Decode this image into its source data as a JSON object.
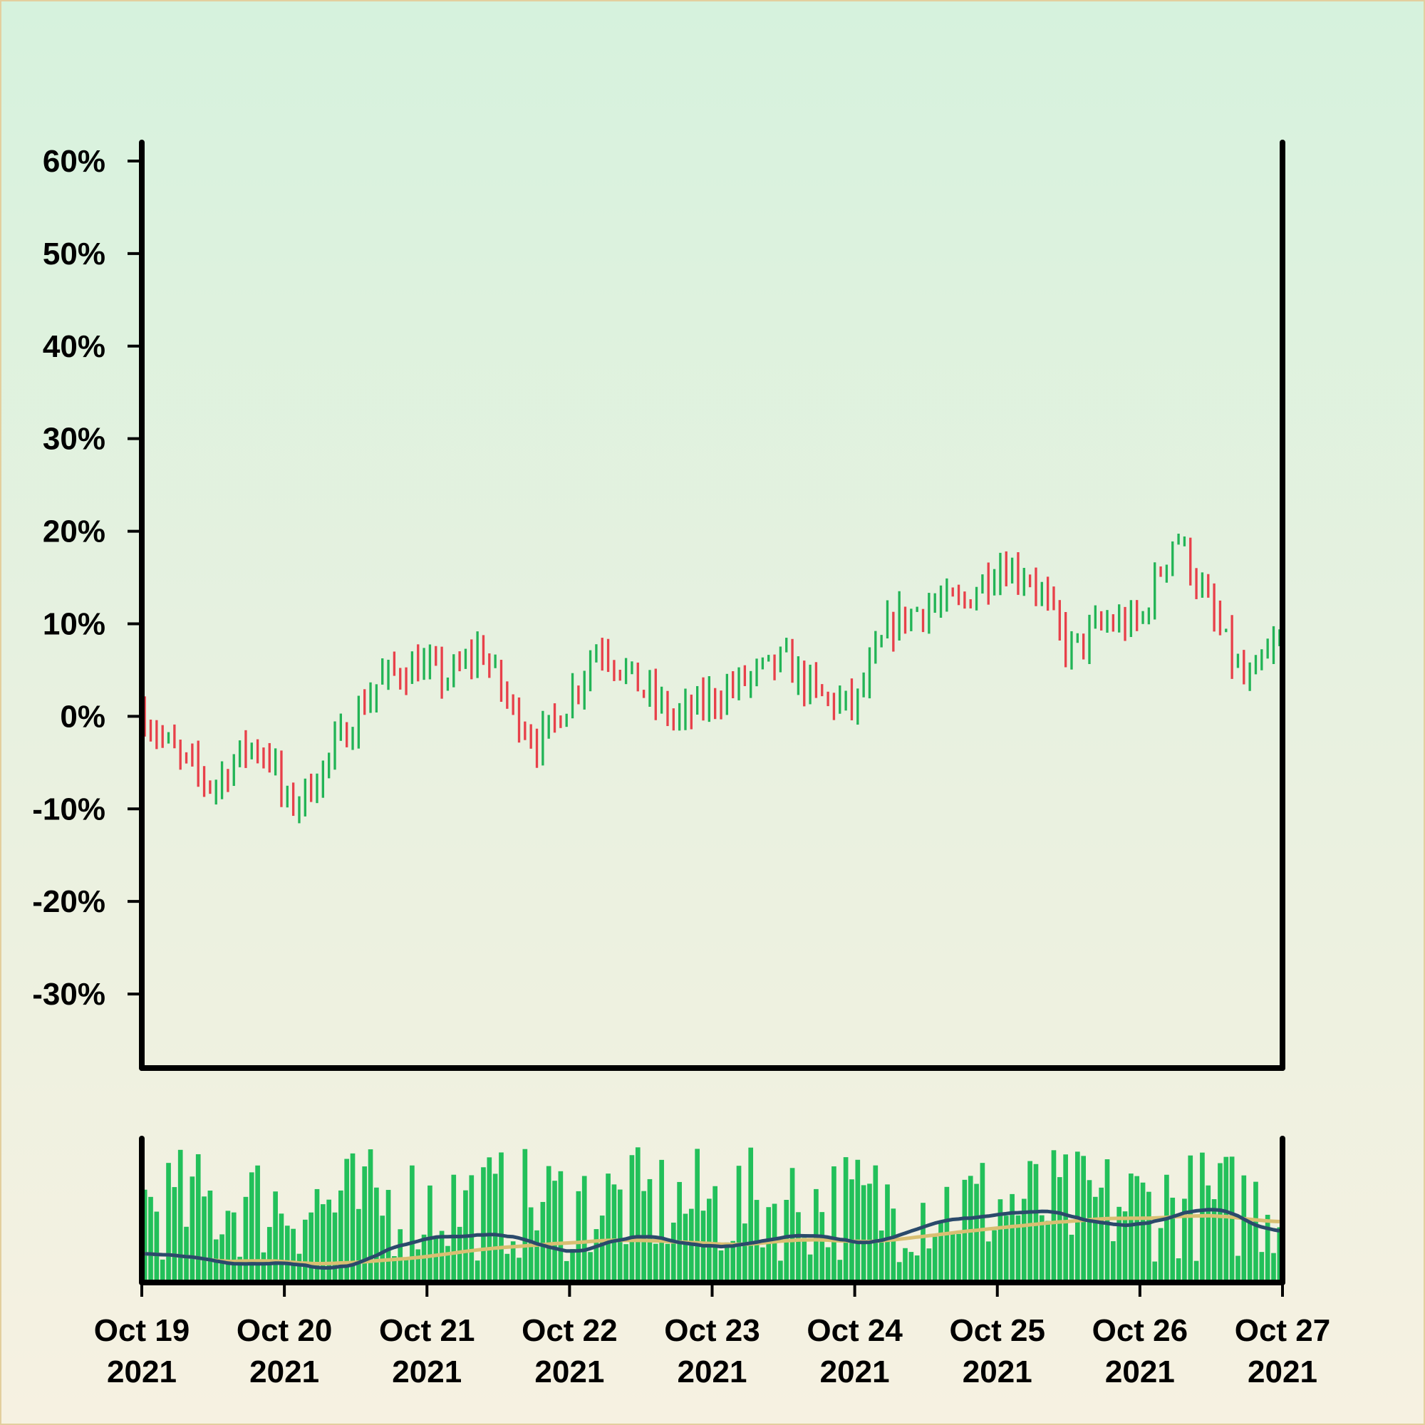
{
  "chart_data": {
    "type": "ohlc",
    "title": "",
    "xlabel": "",
    "ylabel": "",
    "y_axis": {
      "range": [
        -0.38,
        0.62
      ],
      "ticks": [
        0.6,
        0.5,
        0.4,
        0.3,
        0.2,
        0.1,
        0.0,
        -0.1,
        -0.2,
        -0.3
      ],
      "tick_labels": [
        "60%",
        "50%",
        "40%",
        "30%",
        "20%",
        "10%",
        "0%",
        "-10%",
        "-20%",
        "-30%"
      ]
    },
    "x_axis": {
      "range": [
        "2021-10-19",
        "2021-10-27"
      ],
      "ticks": [
        "2021-10-19",
        "2021-10-20",
        "2021-10-21",
        "2021-10-22",
        "2021-10-23",
        "2021-10-24",
        "2021-10-25",
        "2021-10-26",
        "2021-10-27"
      ],
      "tick_labels": [
        [
          "Oct 19",
          "2021"
        ],
        [
          "Oct 20",
          "2021"
        ],
        [
          "Oct 21",
          "2021"
        ],
        [
          "Oct 22",
          "2021"
        ],
        [
          "Oct 23",
          "2021"
        ],
        [
          "Oct 24",
          "2021"
        ],
        [
          "Oct 25",
          "2021"
        ],
        [
          "Oct 26",
          "2021"
        ],
        [
          "Oct 27",
          "2021"
        ]
      ]
    },
    "bars_per_day": 24,
    "close_path_dates": [
      "2021-10-19T00:00",
      "2021-10-19T06:00",
      "2021-10-19T12:00",
      "2021-10-19T18:00",
      "2021-10-19T22:00",
      "2021-10-20T00:00",
      "2021-10-20T04:00",
      "2021-10-20T10:00",
      "2021-10-20T16:00",
      "2021-10-20T22:00",
      "2021-10-21T04:00",
      "2021-10-21T09:00",
      "2021-10-21T14:00",
      "2021-10-21T19:00",
      "2021-10-22T00:00",
      "2021-10-22T05:00",
      "2021-10-22T12:00",
      "2021-10-22T18:00",
      "2021-10-23T00:00",
      "2021-10-23T06:00",
      "2021-10-23T12:00",
      "2021-10-23T18:00",
      "2021-10-24T00:00",
      "2021-10-24T06:00",
      "2021-10-24T12:00",
      "2021-10-24T18:00",
      "2021-10-25T00:00",
      "2021-10-25T06:00",
      "2021-10-25T12:00",
      "2021-10-25T18:00",
      "2021-10-26T00:00",
      "2021-10-26T06:00",
      "2021-10-26T12:00",
      "2021-10-26T18:00",
      "2021-10-26T22:00",
      "2021-10-27T00:00"
    ],
    "close_path_values": [
      0.005,
      -0.045,
      -0.075,
      -0.03,
      -0.045,
      -0.1,
      -0.08,
      -0.02,
      0.04,
      0.055,
      0.04,
      0.075,
      0.01,
      -0.03,
      0.02,
      0.08,
      0.03,
      -0.005,
      0.02,
      0.04,
      0.06,
      0.02,
      0.01,
      0.1,
      0.12,
      0.12,
      0.165,
      0.15,
      0.07,
      0.1,
      0.1,
      0.2,
      0.11,
      0.03,
      0.07,
      0.08
    ],
    "colors": {
      "up": "#22b456",
      "down": "#e8404a",
      "volume": "#22c05a",
      "ma_fast": "#2b4a6b",
      "ma_slow": "#d9bf72",
      "axis": "#000000"
    },
    "volume_panel": {
      "series": [
        {
          "type": "bar"
        },
        {
          "type": "line"
        },
        {
          "type": "line"
        }
      ]
    }
  }
}
